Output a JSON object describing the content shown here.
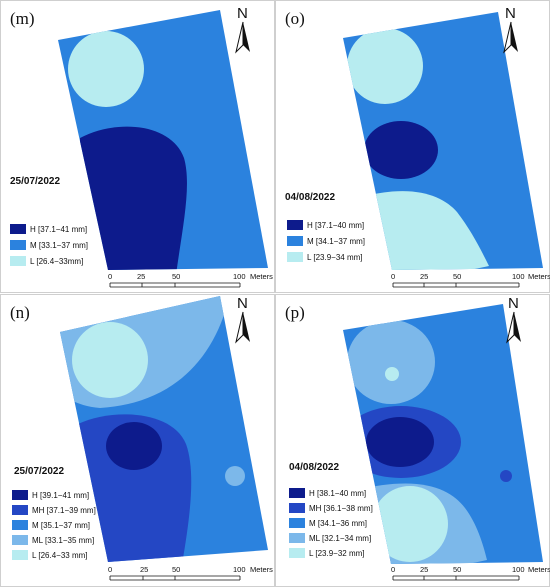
{
  "colors": {
    "H": "#0d1b8c",
    "MH": "#2447c4",
    "M": "#2b82de",
    "ML": "#7cb8ea",
    "L": "#b7ecf0"
  },
  "panels": [
    {
      "label": "(m)",
      "date": "25/07/2022",
      "legend": [
        {
          "text": "H [37.1−41 mm]",
          "color": "#0d1b8c"
        },
        {
          "text": "M [33.1−37 mm]",
          "color": "#2b82de"
        },
        {
          "text": "L [26.4−33mm]",
          "color": "#b7ecf0"
        }
      ]
    },
    {
      "label": "(o)",
      "date": "04/08/2022",
      "legend": [
        {
          "text": "H [37.1−40 mm]",
          "color": "#0d1b8c"
        },
        {
          "text": "M [34.1−37 mm]",
          "color": "#2b82de"
        },
        {
          "text": "L [23.9−34  mm]",
          "color": "#b7ecf0"
        }
      ]
    },
    {
      "label": "(n)",
      "date": "25/07/2022",
      "legend": [
        {
          "text": "H [39.1−41 mm]",
          "color": "#0d1b8c"
        },
        {
          "text": "MH [37.1−39 mm]",
          "color": "#2447c4"
        },
        {
          "text": "M [35.1−37 mm]",
          "color": "#2b82de"
        },
        {
          "text": "ML [33.1−35 mm]",
          "color": "#7cb8ea"
        },
        {
          "text": "L [26.4−33 mm]",
          "color": "#b7ecf0"
        }
      ]
    },
    {
      "label": "(p)",
      "date": "04/08/2022",
      "legend": [
        {
          "text": "H [38.1−40 mm]",
          "color": "#0d1b8c"
        },
        {
          "text": "MH [36.1−38 mm]",
          "color": "#2447c4"
        },
        {
          "text": "M [34.1−36 mm]",
          "color": "#2b82de"
        },
        {
          "text": "ML [32.1−34 mm]",
          "color": "#7cb8ea"
        },
        {
          "text": "L [23.9−32 mm]",
          "color": "#b7ecf0"
        }
      ]
    }
  ],
  "north": {
    "letter": "N",
    "icon": "north-arrow-icon"
  },
  "scale": {
    "ticks": [
      "0",
      "25",
      "50",
      "100"
    ],
    "unit": "Meters"
  }
}
